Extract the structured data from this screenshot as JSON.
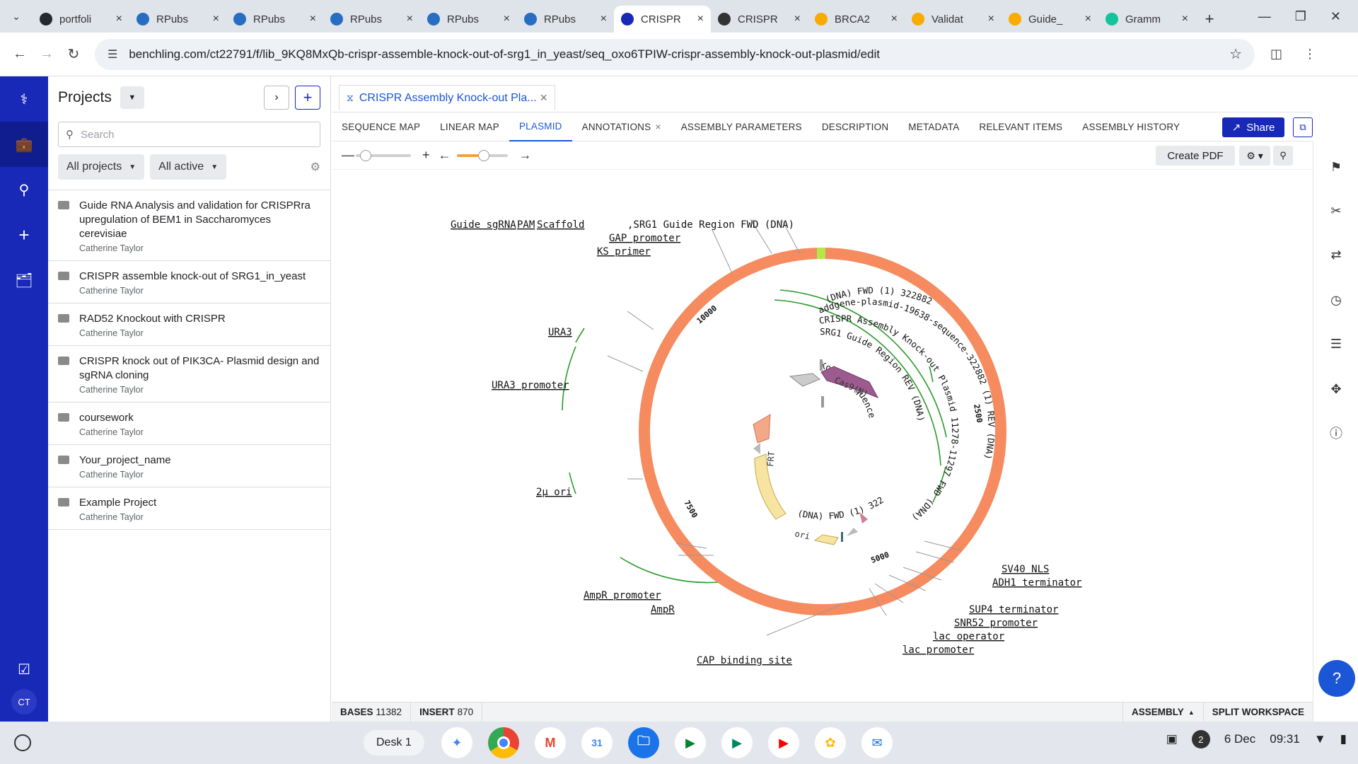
{
  "browser": {
    "tabs": [
      {
        "title": "portfoli",
        "icon": "github-icon",
        "color": "#24292f"
      },
      {
        "title": "RPubs",
        "icon": "rpubs-icon",
        "color": "#276dc2"
      },
      {
        "title": "RPubs",
        "icon": "rpubs-icon",
        "color": "#276dc2"
      },
      {
        "title": "RPubs",
        "icon": "rpubs-icon",
        "color": "#276dc2"
      },
      {
        "title": "RPubs",
        "icon": "rpubs-icon",
        "color": "#276dc2"
      },
      {
        "title": "RPubs",
        "icon": "rpubs-icon",
        "color": "#276dc2"
      },
      {
        "title": "CRISPR",
        "icon": "benchling-icon",
        "color": "#1829b8",
        "active": true
      },
      {
        "title": "CRISPR",
        "icon": "openai-icon",
        "color": "#333333"
      },
      {
        "title": "BRCA2",
        "icon": "colab-icon",
        "color": "#f9ab00"
      },
      {
        "title": "Validat",
        "icon": "colab-icon",
        "color": "#f9ab00"
      },
      {
        "title": "Guide_",
        "icon": "colab-icon",
        "color": "#f9ab00"
      },
      {
        "title": "Gramm",
        "icon": "grammarly-icon",
        "color": "#15c39a"
      }
    ],
    "url": "benchling.com/ct22791/f/lib_9KQ8MxQb-crispr-assemble-knock-out-of-srg1_in_yeast/seq_oxo6TPIW-crispr-assembly-knock-out-plasmid/edit"
  },
  "projects_panel": {
    "title": "Projects",
    "search_placeholder": "Search",
    "filter_projects": "All projects",
    "filter_status": "All active",
    "items": [
      {
        "name": "Guide RNA Analysis and validation for CRISPRra upregulation of BEM1 in Saccharomyces cerevisiae",
        "owner": "Catherine Taylor"
      },
      {
        "name": "CRISPR assemble knock-out of SRG1_in_yeast",
        "owner": "Catherine Taylor"
      },
      {
        "name": "RAD52 Knockout with CRISPR",
        "owner": "Catherine Taylor"
      },
      {
        "name": "CRISPR knock out of PIK3CA- Plasmid design and sgRNA cloning",
        "owner": "Catherine Taylor"
      },
      {
        "name": "coursework",
        "owner": "Catherine Taylor"
      },
      {
        "name": "Your_project_name",
        "owner": "Catherine Taylor"
      },
      {
        "name": "Example Project",
        "owner": "Catherine Taylor"
      }
    ]
  },
  "rail": {
    "avatar_initials": "CT"
  },
  "document": {
    "tab_title": "CRISPR Assembly Knock-out Pla...",
    "view_tabs": [
      "SEQUENCE MAP",
      "LINEAR MAP",
      "PLASMID",
      "ANNOTATIONS",
      "ASSEMBLY PARAMETERS",
      "DESCRIPTION",
      "METADATA",
      "RELEVANT ITEMS",
      "ASSEMBLY HISTORY"
    ],
    "active_view": "PLASMID",
    "share_label": "Share",
    "create_pdf_label": "Create PDF"
  },
  "plasmid_map": {
    "ring_color": "#f58b5f",
    "position_labels": [
      "10000",
      "2500",
      "5000",
      "7500"
    ],
    "outer_labels": [
      "Guide sgRNA",
      "PAM",
      "Scaffold ",
      ",SRG1 Guide Region FWD (DNA)",
      "GAP promoter",
      "KS primer",
      "URA3",
      "URA3 promoter",
      "2μ ori",
      "AmpR promoter",
      "AmpR",
      "CAP binding site",
      "SV40 NLS",
      "ADH1 terminator",
      "SUP4 terminator",
      "SNR52 promoter",
      "lac operator",
      "lac promoter"
    ],
    "inner_labels": [
      "(DNA) FWD (1) 322882",
      "addgene-plasmid-19638-sequence-322882 (1) REV (DNA)",
      "CRISPR Assembly Knock-out Plasmid 11278-11297 FWD (DNA)",
      "SRG1 Guide Region REV (DNA)",
      "Cas9(N)",
      "Kozak sequence",
      "FRT",
      "ori"
    ]
  },
  "status_bar": {
    "bases_label": "BASES",
    "bases_value": "11382",
    "insert_label": "INSERT",
    "insert_value": "870",
    "assembly_label": "ASSEMBLY",
    "split_label": "SPLIT WORKSPACE"
  },
  "shelf": {
    "desk_label": "Desk 1",
    "notification_count": "2",
    "date": "6 Dec",
    "time": "09:31"
  }
}
